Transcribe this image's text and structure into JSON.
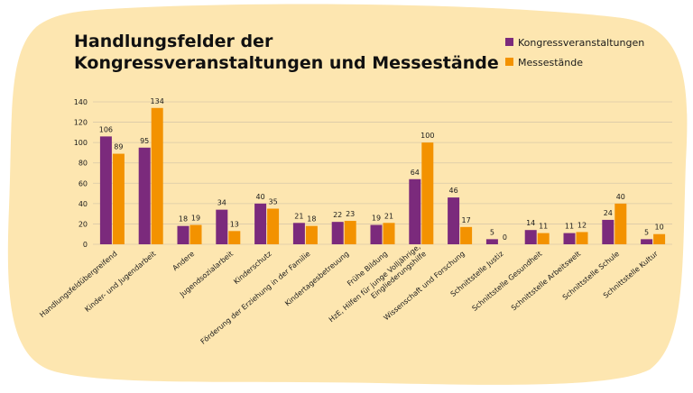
{
  "chart_data": {
    "type": "bar",
    "title": [
      "Handlungsfelder der",
      "Kongressveranstaltungen und Messestände"
    ],
    "categories": [
      [
        "Handlungsfeldübergreifend"
      ],
      [
        "Kinder- und Jugendarbeit"
      ],
      [
        "Andere"
      ],
      [
        "Jugendsozialarbeit"
      ],
      [
        "Kinderschutz"
      ],
      [
        "Förderung der Erziehung in der Familie"
      ],
      [
        "Kindertagesbetreuung"
      ],
      [
        "Frühe Bildung"
      ],
      [
        "HzE, Hilfen für junge Volljährige,",
        "Eingliederungshilfe"
      ],
      [
        "Wissenschaft und Forschung"
      ],
      [
        "Schnittstelle Justiz"
      ],
      [
        "Schnittstelle Gesundheit"
      ],
      [
        "Schnittstelle Arbeitswelt"
      ],
      [
        "Schnittstelle Schule"
      ],
      [
        "Schnittstelle Kultur"
      ]
    ],
    "series": [
      {
        "name": "Kongressveranstaltungen",
        "color": "#7b2a7c",
        "values": [
          106,
          95,
          18,
          34,
          40,
          21,
          22,
          19,
          64,
          46,
          5,
          14,
          11,
          24,
          5
        ]
      },
      {
        "name": "Messestände",
        "color": "#f39200",
        "values": [
          89,
          134,
          19,
          13,
          35,
          18,
          23,
          21,
          100,
          17,
          0,
          11,
          12,
          40,
          10
        ]
      }
    ],
    "ylim": [
      0,
      140
    ],
    "yticks": [
      0,
      20,
      40,
      60,
      80,
      100,
      120,
      140
    ],
    "grid": true,
    "legend": "top-right"
  }
}
